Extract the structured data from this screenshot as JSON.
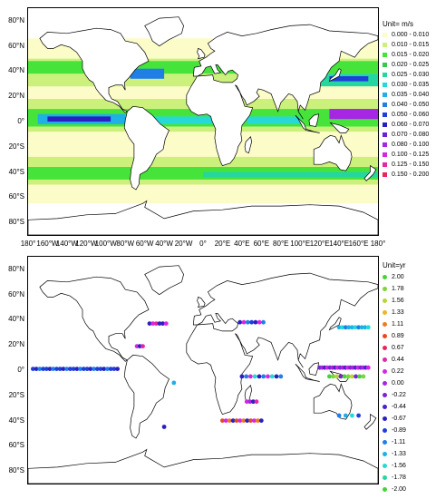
{
  "top_panel": {
    "unit_label": "Unit= m/s",
    "lat_labels": [
      "80°N",
      "60°N",
      "40°N",
      "20°N",
      "0°",
      "20°S",
      "40°S",
      "60°S",
      "80°S"
    ],
    "legend": [
      {
        "label": "0.000 - 0.010",
        "color": "#fcfcc8"
      },
      {
        "label": "0.010 - 0.015",
        "color": "#ccf07c"
      },
      {
        "label": "0.015 - 0.020",
        "color": "#46e43a"
      },
      {
        "label": "0.020 - 0.025",
        "color": "#37c94f"
      },
      {
        "label": "0.025 - 0.030",
        "color": "#24d6a0"
      },
      {
        "label": "0.030 - 0.035",
        "color": "#25d9d6"
      },
      {
        "label": "0.035 - 0.040",
        "color": "#1fb0e6"
      },
      {
        "label": "0.040 - 0.050",
        "color": "#1f7fe6"
      },
      {
        "label": "0.050 - 0.060",
        "color": "#1e40d8"
      },
      {
        "label": "0.060 - 0.070",
        "color": "#2a1fc0"
      },
      {
        "label": "0.070 - 0.080",
        "color": "#6a22d8"
      },
      {
        "label": "0.080 - 0.100",
        "color": "#a526e3"
      },
      {
        "label": "0.100 - 0.125",
        "color": "#d626e3"
      },
      {
        "label": "0.125 - 0.150",
        "color": "#e626a8"
      },
      {
        "label": "0.150 - 0.200",
        "color": "#e6265c"
      }
    ]
  },
  "bottom_panel": {
    "unit_label": "Unit=yr",
    "lat_labels": [
      "80°N",
      "60°N",
      "40°N",
      "20°N",
      "0°",
      "20°S",
      "40°S",
      "60°S",
      "80°S"
    ],
    "legend": [
      {
        "label": "2.00",
        "color": "#46d23a"
      },
      {
        "label": "1.78",
        "color": "#7ad63a"
      },
      {
        "label": "1.56",
        "color": "#b4d63a"
      },
      {
        "label": "1.33",
        "color": "#f0b42a"
      },
      {
        "label": "1.11",
        "color": "#f07a1e"
      },
      {
        "label": "0.89",
        "color": "#e64a1e"
      },
      {
        "label": "0.67",
        "color": "#e6265c"
      },
      {
        "label": "0.44",
        "color": "#e626a8"
      },
      {
        "label": "0.22",
        "color": "#d626e3"
      },
      {
        "label": "0.00",
        "color": "#a526e3"
      },
      {
        "label": "-0.22",
        "color": "#7a22d8"
      },
      {
        "label": "-0.44",
        "color": "#4a22c8"
      },
      {
        "label": "-0.67",
        "color": "#2a1fc0"
      },
      {
        "label": "-0.89",
        "color": "#1e40d8"
      },
      {
        "label": "-1.11",
        "color": "#1f7fe6"
      },
      {
        "label": "-1.33",
        "color": "#1fb0e6"
      },
      {
        "label": "-1.56",
        "color": "#25d9d6"
      },
      {
        "label": "-1.78",
        "color": "#24d6a0"
      },
      {
        "label": "-2.00",
        "color": "#46d23a"
      }
    ]
  },
  "lon_labels": [
    "180°",
    "160°W",
    "140°W",
    "120°W",
    "100°W",
    "80°W",
    "60°W",
    "40°W",
    "20°W",
    "0°",
    "20°E",
    "40°E",
    "60°E",
    "80°E",
    "100°E",
    "120°E",
    "140°E",
    "160°E",
    "180°"
  ]
}
